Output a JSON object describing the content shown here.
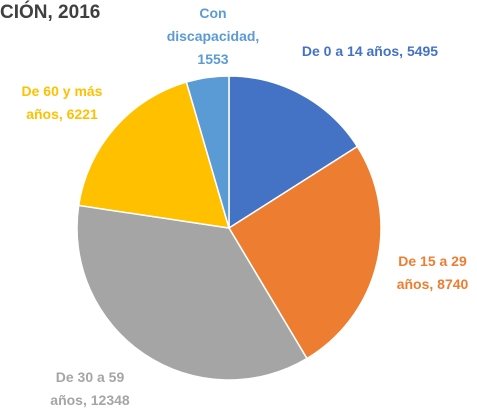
{
  "chart_data": {
    "type": "pie",
    "title": "CIÓN, 2016",
    "categories": [
      "De 0 a 14 años,",
      "De 15 a 29 años,",
      "De 30 a 59 años,",
      "De 60 y más años,",
      "Con discapacidad,"
    ],
    "values": [
      5495,
      8740,
      12348,
      6221,
      1553
    ],
    "colors": [
      "#4472c4",
      "#ed7d31",
      "#a5a5a5",
      "#ffc000",
      "#5b9bd5"
    ]
  }
}
